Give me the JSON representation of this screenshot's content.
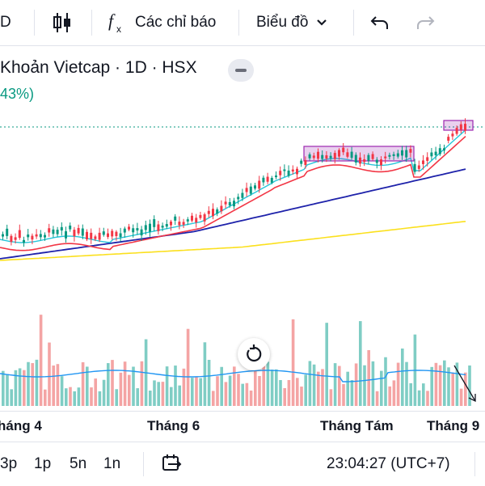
{
  "toolbar": {
    "interval_fragment": "D",
    "indicators_label": "Các chỉ báo",
    "chart_type_label": "Biểu đồ",
    "icons": [
      "candles-icon",
      "indicators-icon",
      "chevron-down-icon",
      "undo-icon",
      "redo-icon"
    ]
  },
  "legend": {
    "title": "Khoản Vietcap · 1D · HSX",
    "change": "43%)",
    "change_color": "#089981"
  },
  "time_axis": {
    "labels": [
      "háng 4",
      "Tháng 6",
      "Tháng Tám",
      "Tháng 9"
    ]
  },
  "bottom_bar": {
    "ranges": [
      "3p",
      "1p",
      "5n",
      "1n"
    ],
    "clock": "23:04:27 (UTC+7)"
  },
  "colors": {
    "up": "#089981",
    "down": "#f23645",
    "ma_fast": "#26c6da",
    "ma_mid": "#f23645",
    "ma_slow": "#1e22aa",
    "ma_long": "#fbe01e",
    "highlight": "#9c27b0",
    "volume_up": "#7fcdc4",
    "volume_down": "#f4a4a4",
    "volume_ma": "#2196f3"
  }
}
